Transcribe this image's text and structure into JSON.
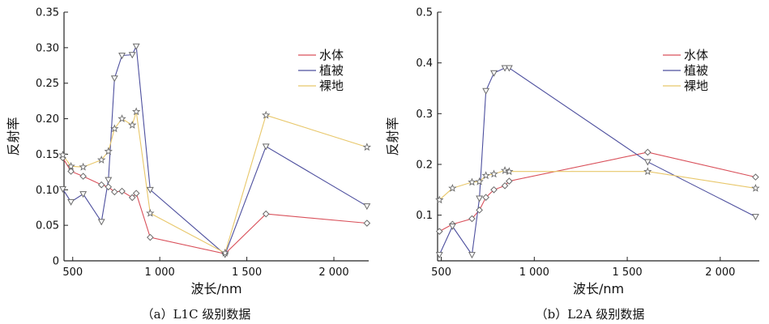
{
  "colors": {
    "water": "#d9505a",
    "vegetation": "#4d4f9e",
    "bare": "#e8c76a",
    "marker": "#6a6a6a"
  },
  "chart_data": [
    {
      "type": "line",
      "caption": "（a）L1C 级别数据",
      "xlabel": "波长/nm",
      "ylabel": "反射率",
      "xlim": [
        450,
        2200
      ],
      "ylim": [
        0,
        0.35
      ],
      "xticks": [
        500,
        1000,
        1500,
        2000
      ],
      "xtick_labels": [
        "500",
        "1 000",
        "1 500",
        "2 000"
      ],
      "yticks": [
        0,
        0.05,
        0.1,
        0.15,
        0.2,
        0.25,
        0.3,
        0.35
      ],
      "ytick_labels": [
        "0",
        "0.05",
        "0.10",
        "0.15",
        "0.20",
        "0.25",
        "0.30",
        "0.35"
      ],
      "legend_position": "top-right",
      "x": [
        443,
        490,
        560,
        665,
        705,
        740,
        783,
        842,
        865,
        945,
        1375,
        1610,
        2190
      ],
      "series": [
        {
          "name": "水体",
          "marker": "diamond",
          "values": [
            0.145,
            0.126,
            0.119,
            0.107,
            0.104,
            0.097,
            0.098,
            0.089,
            0.095,
            0.033,
            0.01,
            0.066,
            0.053
          ]
        },
        {
          "name": "植被",
          "marker": "triangle",
          "values": [
            0.101,
            0.083,
            0.094,
            0.055,
            0.114,
            0.257,
            0.289,
            0.29,
            0.302,
            0.1,
            0.009,
            0.161,
            0.077
          ]
        },
        {
          "name": "裸地",
          "marker": "star",
          "values": [
            0.149,
            0.133,
            0.132,
            0.142,
            0.154,
            0.186,
            0.2,
            0.191,
            0.21,
            0.067,
            0.011,
            0.205,
            0.16
          ]
        }
      ]
    },
    {
      "type": "line",
      "caption": "（b）L2A 级别数据",
      "xlabel": "波长/nm",
      "ylabel": "反射率",
      "xlim": [
        480,
        2210
      ],
      "ylim": [
        0.01,
        0.5
      ],
      "xticks": [
        500,
        1000,
        1500,
        2000
      ],
      "xtick_labels": [
        "500",
        "1 000",
        "1 500",
        "2 000"
      ],
      "yticks": [
        0.1,
        0.2,
        0.3,
        0.4,
        0.5
      ],
      "ytick_labels": [
        "0.1",
        "0.2",
        "0.3",
        "0.4",
        "0.5"
      ],
      "legend_position": "top-right",
      "x": [
        490,
        560,
        665,
        705,
        740,
        783,
        842,
        865,
        1610,
        2190
      ],
      "series": [
        {
          "name": "水体",
          "marker": "diamond",
          "values": [
            0.068,
            0.082,
            0.093,
            0.11,
            0.135,
            0.15,
            0.158,
            0.167,
            0.224,
            0.175
          ]
        },
        {
          "name": "植被",
          "marker": "triangle",
          "values": [
            0.022,
            0.078,
            0.022,
            0.133,
            0.345,
            0.38,
            0.39,
            0.39,
            0.205,
            0.097
          ]
        },
        {
          "name": "裸地",
          "marker": "star",
          "values": [
            0.13,
            0.153,
            0.165,
            0.166,
            0.178,
            0.181,
            0.188,
            0.186,
            0.186,
            0.153
          ]
        }
      ]
    }
  ]
}
